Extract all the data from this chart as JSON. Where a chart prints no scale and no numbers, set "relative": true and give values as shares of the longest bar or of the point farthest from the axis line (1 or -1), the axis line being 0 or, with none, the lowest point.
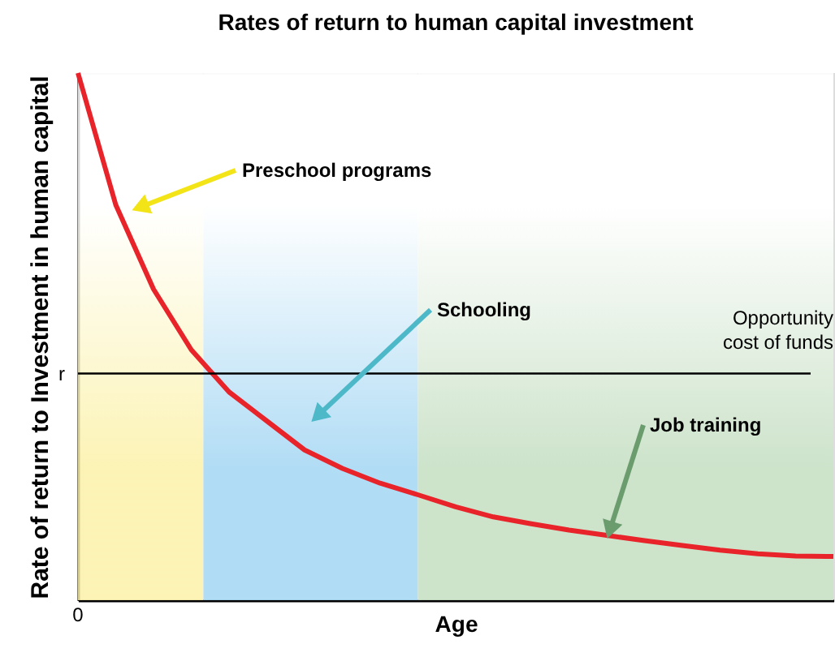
{
  "chart_data": {
    "type": "line",
    "title": "Rates of return to human capital investment",
    "xlabel": "Age",
    "ylabel": "Rate of return to Investment in human capital",
    "relative": true,
    "categories": [
      null,
      null,
      null,
      null,
      null,
      null,
      null,
      null,
      null,
      null,
      null,
      null,
      null,
      null,
      null,
      null,
      null,
      null,
      null,
      null,
      null
    ],
    "series": [
      {
        "color": "#e8232a",
        "values": [
          1.0,
          0.75,
          0.59,
          0.475,
          0.395,
          0.34,
          0.285,
          0.25,
          0.222,
          0.2,
          0.177,
          0.158,
          0.145,
          0.133,
          0.123,
          0.113,
          0.104,
          0.095,
          0.088,
          0.084,
          0.083
        ]
      }
    ],
    "ref_lines": [
      {
        "axis": "y",
        "value": 0.43,
        "label": "r",
        "color": "#000000"
      }
    ],
    "annotations": [
      "Preschool programs",
      "Schooling",
      "Job training",
      "Opportunity cost of funds",
      "0"
    ],
    "grid": false,
    "marker": "none",
    "line_style": "solid"
  }
}
